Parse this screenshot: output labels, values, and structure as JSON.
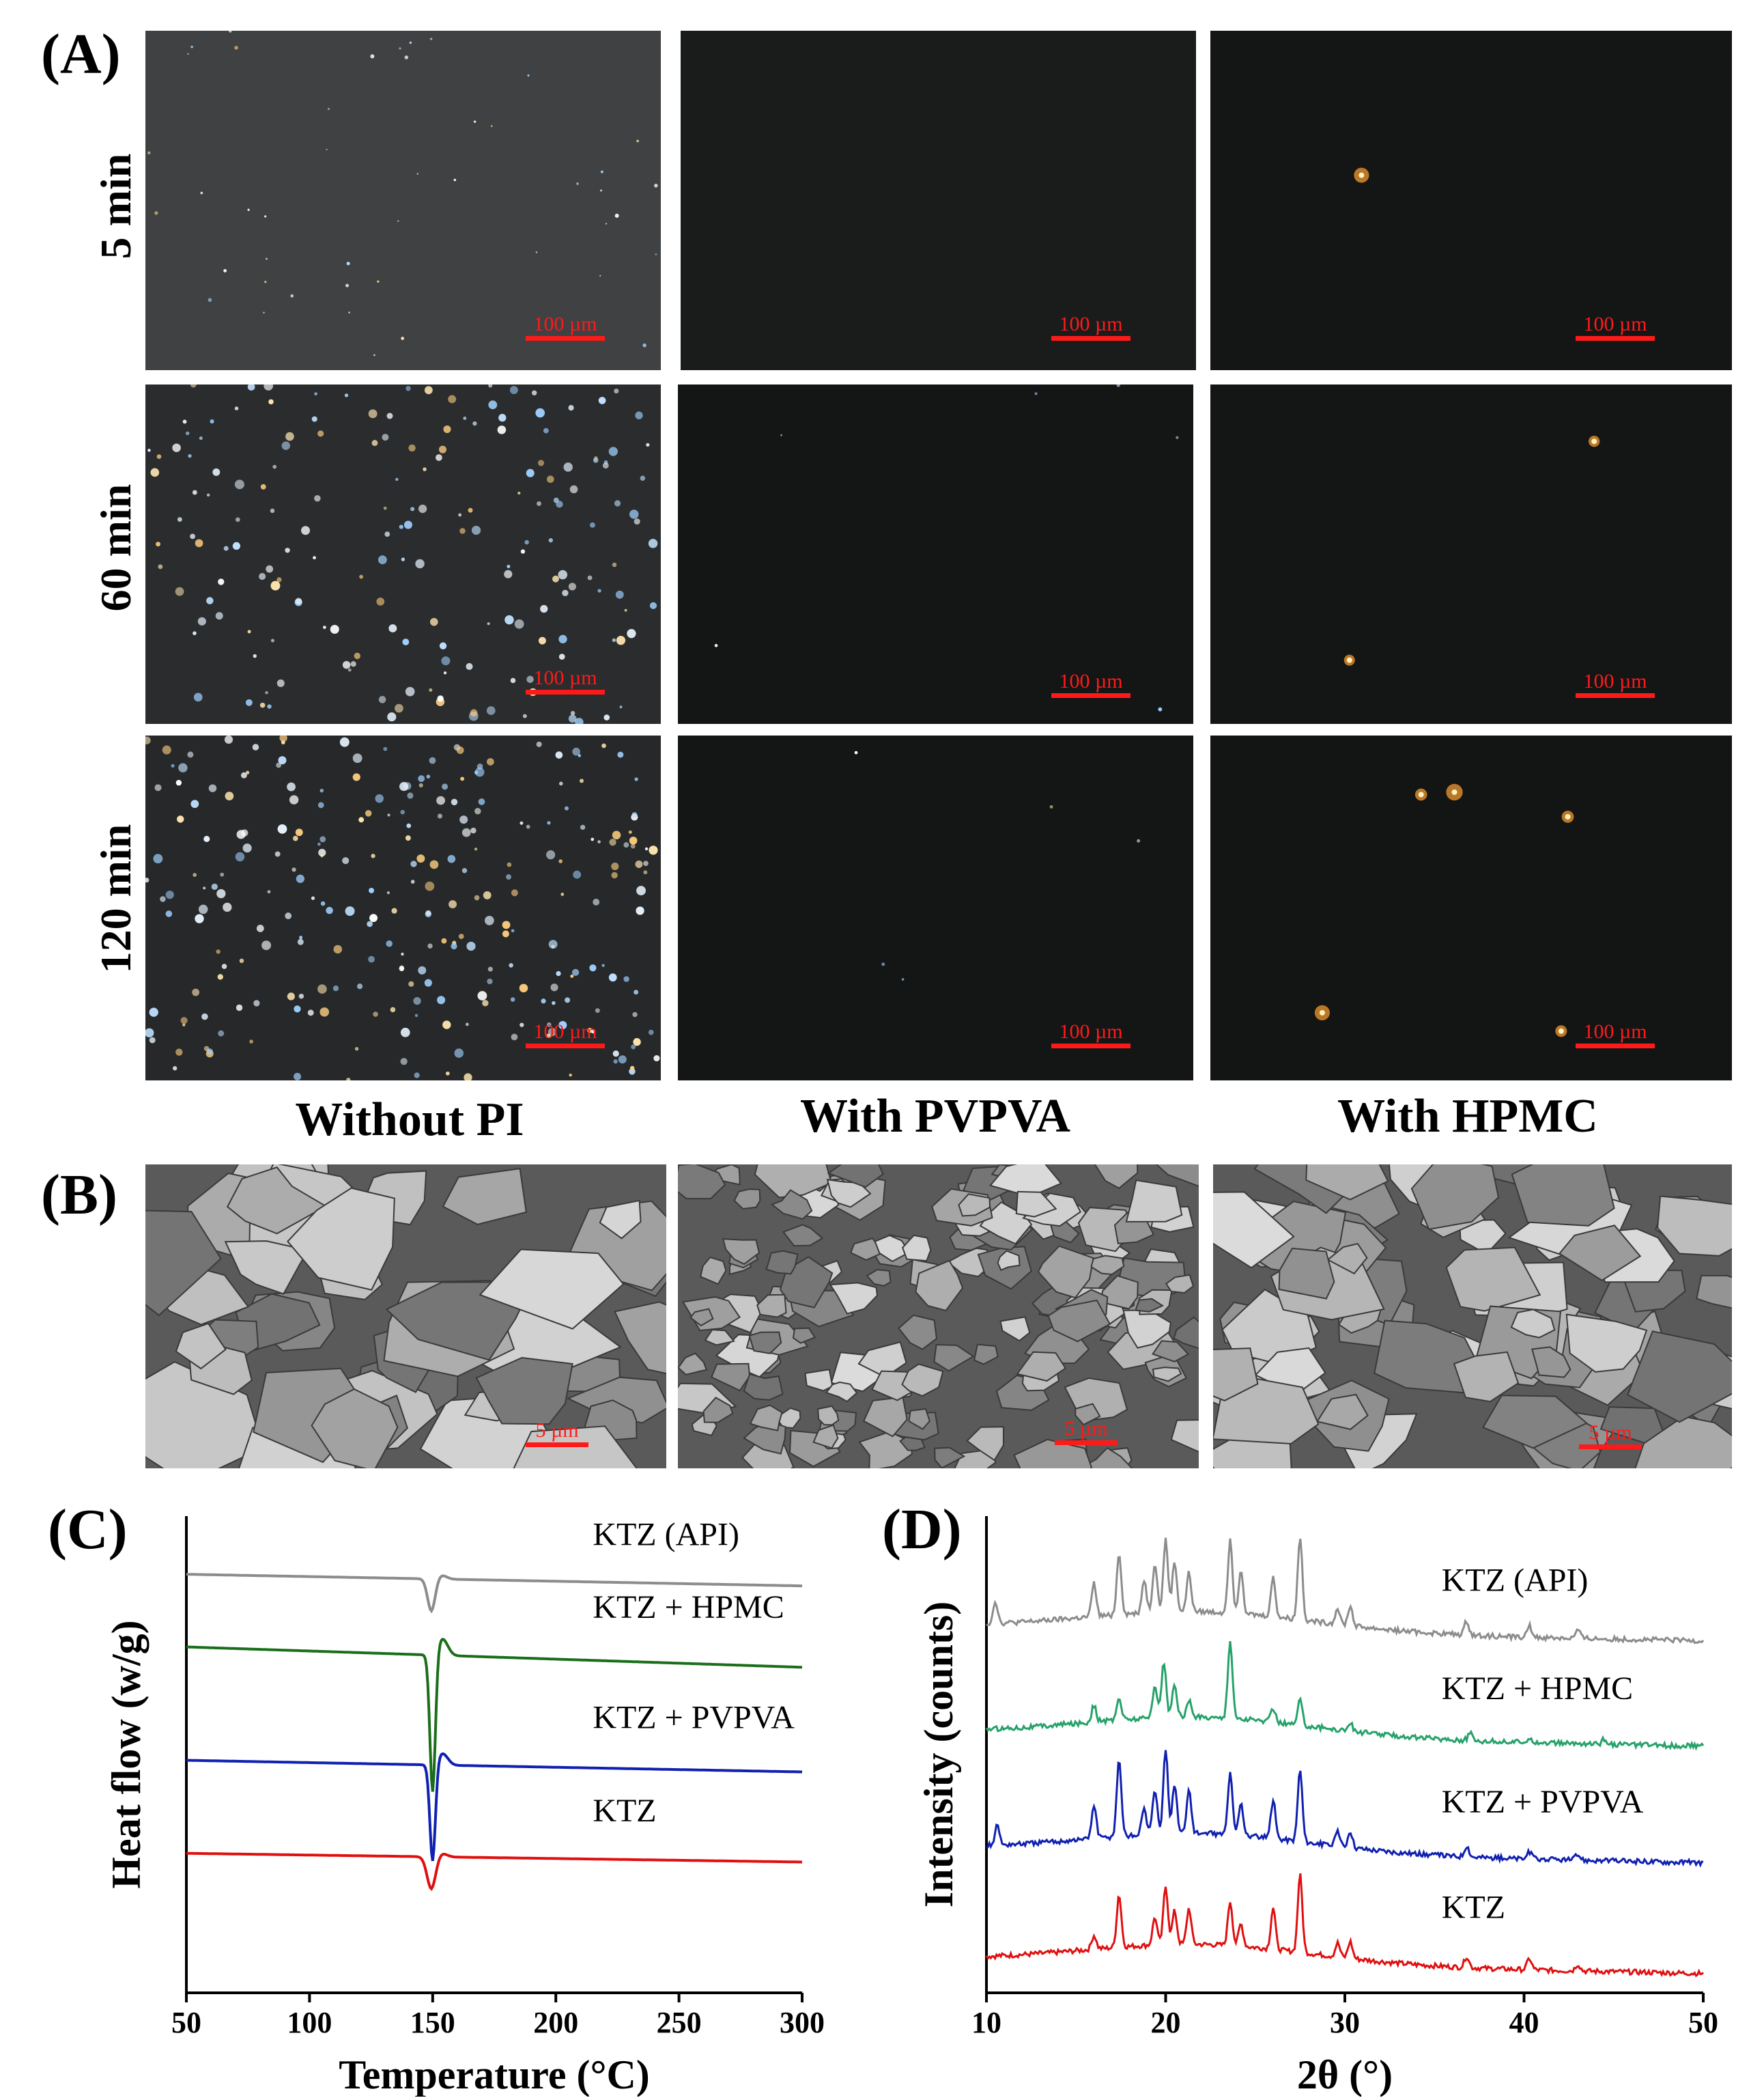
{
  "panels": {
    "a": "(A)",
    "b": "(B)",
    "c": "(C)",
    "d": "(D)"
  },
  "row_labels": [
    "5 min",
    "60 min",
    "120 min"
  ],
  "column_labels": [
    "Without PI",
    "With PVPVA",
    "With HPMC"
  ],
  "plm_scale_label": "100 µm",
  "sem_scale_label": "5 µm",
  "colors": {
    "api": "#8c8c8c",
    "hpmc_c": "#1a6e1a",
    "hpmc_d": "#26a26a",
    "pvpva": "#1020b0",
    "ktz": "#e01010",
    "scale": "#ff1a1a"
  },
  "chart_data": [
    {
      "type": "line",
      "panel": "(C)",
      "xlabel": "Temperature (°C)",
      "ylabel": "Heat flow (w/g)",
      "xlim": [
        50,
        300
      ],
      "xticks": [
        50,
        100,
        150,
        200,
        250,
        300
      ],
      "series": [
        {
          "name": "KTZ (API)",
          "baseline": 5.2,
          "drift": -0.2,
          "dip_center": 149.5,
          "dip_depth": 0.55,
          "dip_width": 2.2
        },
        {
          "name": "KTZ + HPMC",
          "baseline": 3.95,
          "drift": -0.35,
          "dip_center": 150,
          "dip_depth": 2.35,
          "dip_width": 1.6
        },
        {
          "name": "KTZ + PVPVA",
          "baseline": 2.0,
          "drift": -0.2,
          "dip_center": 150,
          "dip_depth": 1.65,
          "dip_width": 1.6
        },
        {
          "name": "KTZ",
          "baseline": 0.4,
          "drift": -0.15,
          "dip_center": 149.5,
          "dip_depth": 0.55,
          "dip_width": 2.5
        }
      ]
    },
    {
      "type": "line",
      "panel": "(D)",
      "xlabel": "2θ (°)",
      "ylabel": "Intensity (counts)",
      "xlim": [
        10,
        50
      ],
      "xticks": [
        10,
        20,
        30,
        40,
        50
      ],
      "series": [
        {
          "name": "KTZ (API)",
          "offset": 6.0,
          "peaks": [
            [
              10.5,
              0.4
            ],
            [
              16,
              0.6
            ],
            [
              17.4,
              1.1
            ],
            [
              18.8,
              0.6
            ],
            [
              19.4,
              0.9
            ],
            [
              20.0,
              1.3
            ],
            [
              20.5,
              0.9
            ],
            [
              21.3,
              0.7
            ],
            [
              23.6,
              1.3
            ],
            [
              24.2,
              0.8
            ],
            [
              26.0,
              0.7
            ],
            [
              27.5,
              1.5
            ],
            [
              29.6,
              0.3
            ],
            [
              30.3,
              0.35
            ],
            [
              36.8,
              0.25
            ],
            [
              40.3,
              0.2
            ],
            [
              43,
              0.15
            ]
          ]
        },
        {
          "name": "KTZ + HPMC",
          "offset": 4.1,
          "peaks": [
            [
              16,
              0.3
            ],
            [
              17.4,
              0.4
            ],
            [
              19.4,
              0.6
            ],
            [
              19.9,
              1.0
            ],
            [
              20.5,
              0.6
            ],
            [
              21.3,
              0.3
            ],
            [
              23.6,
              1.4
            ],
            [
              26.0,
              0.25
            ],
            [
              27.5,
              0.45
            ],
            [
              30.3,
              0.15
            ],
            [
              37,
              0.12
            ],
            [
              40.3,
              0.1
            ],
            [
              44.5,
              0.1
            ]
          ]
        },
        {
          "name": "KTZ + PVPVA",
          "offset": 2.0,
          "peaks": [
            [
              10.6,
              0.35
            ],
            [
              16,
              0.6
            ],
            [
              17.4,
              1.4
            ],
            [
              18.8,
              0.5
            ],
            [
              19.4,
              0.8
            ],
            [
              20.0,
              1.5
            ],
            [
              20.5,
              0.9
            ],
            [
              21.3,
              0.8
            ],
            [
              23.6,
              1.1
            ],
            [
              24.2,
              0.6
            ],
            [
              26.0,
              0.7
            ],
            [
              27.5,
              1.3
            ],
            [
              29.6,
              0.25
            ],
            [
              30.3,
              0.3
            ],
            [
              36.8,
              0.2
            ],
            [
              40.3,
              0.12
            ],
            [
              43,
              0.1
            ]
          ]
        },
        {
          "name": "KTZ",
          "offset": 0.0,
          "peaks": [
            [
              16,
              0.25
            ],
            [
              17.4,
              0.95
            ],
            [
              19.4,
              0.5
            ],
            [
              20.0,
              1.05
            ],
            [
              20.5,
              0.6
            ],
            [
              21.3,
              0.65
            ],
            [
              23.6,
              0.8
            ],
            [
              24.2,
              0.4
            ],
            [
              26.0,
              0.75
            ],
            [
              27.5,
              1.4
            ],
            [
              29.6,
              0.25
            ],
            [
              30.3,
              0.3
            ],
            [
              36.8,
              0.2
            ],
            [
              40.3,
              0.2
            ],
            [
              43,
              0.12
            ]
          ]
        }
      ]
    }
  ]
}
